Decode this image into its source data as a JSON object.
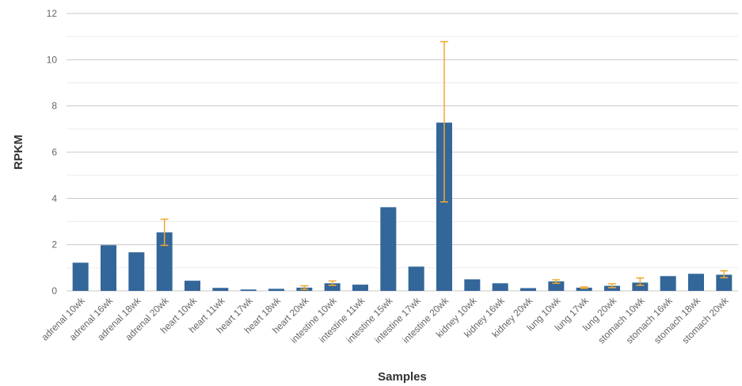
{
  "chart_data": {
    "type": "bar",
    "title": "",
    "xlabel": "Samples",
    "ylabel": "RPKM",
    "ylim": [
      0,
      12
    ],
    "yticks": [
      0,
      2,
      4,
      6,
      8,
      10,
      12
    ],
    "grid": true,
    "legend": "none",
    "colors": {
      "bar": "#336699",
      "error": "#f0a830",
      "grid": "#c8c8c8"
    },
    "categories": [
      "adrenal 10wk",
      "adrenal 16wk",
      "adrenal 18wk",
      "adrenal 20wk",
      "heart 10wk",
      "heart 11wk",
      "heart 17wk",
      "heart 18wk",
      "heart 20wk",
      "intestine 10wk",
      "intestine 11wk",
      "intestine 15wk",
      "intestine 17wk",
      "intestine 20wk",
      "kidney 10wk",
      "kidney 16wk",
      "kidney 20wk",
      "lung 10wk",
      "lung 17wk",
      "lung 20wk",
      "stomach 10wk",
      "stomach 16wk",
      "stomach 18wk",
      "stomach 20wk"
    ],
    "values": [
      1.22,
      1.98,
      1.67,
      2.53,
      0.44,
      0.13,
      0.06,
      0.09,
      0.14,
      0.33,
      0.27,
      3.62,
      1.05,
      7.28,
      0.5,
      0.33,
      0.12,
      0.41,
      0.14,
      0.22,
      0.36,
      0.64,
      0.74,
      0.7
    ],
    "error": [
      null,
      null,
      null,
      [
        1.97,
        3.1
      ],
      null,
      null,
      null,
      null,
      [
        0.07,
        0.22
      ],
      [
        0.24,
        0.43
      ],
      null,
      null,
      null,
      [
        3.85,
        10.78
      ],
      null,
      null,
      null,
      [
        0.33,
        0.48
      ],
      [
        0.11,
        0.17
      ],
      [
        0.14,
        0.31
      ],
      [
        0.24,
        0.56
      ],
      null,
      null,
      [
        0.57,
        0.87
      ]
    ]
  }
}
